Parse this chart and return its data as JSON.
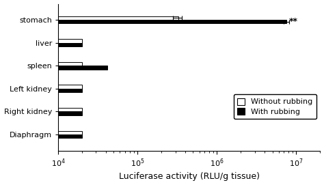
{
  "categories": [
    "Diaphragm",
    "Right kidney",
    "Left kidney",
    "spleen",
    "liver",
    "stomach"
  ],
  "without_rubbing": [
    10000.0,
    10000.0,
    10000.0,
    10000.0,
    10000.0,
    320000.0
  ],
  "with_rubbing": [
    10000.0,
    10000.0,
    10000.0,
    32000.0,
    10000.0,
    7500000.0
  ],
  "without_rubbing_err": [
    0,
    0,
    0,
    0,
    0,
    40000.0
  ],
  "with_rubbing_err": [
    0,
    0,
    0,
    8000.0,
    0,
    600000.0
  ],
  "xmin": 10000.0,
  "xmax": 20000000.0,
  "xlabel": "Luciferase activity (RLU/g tissue)",
  "legend_without": "Without rubbing",
  "legend_with": "With rubbing",
  "significance_text": "**",
  "bar_height": 0.32,
  "bar_gap": 0.0,
  "background_color": "#ffffff",
  "bar_color_without": "#ffffff",
  "bar_color_with": "#000000",
  "bar_edgecolor": "#000000",
  "tick_label_fontsize": 8,
  "axis_label_fontsize": 9,
  "legend_fontsize": 8
}
